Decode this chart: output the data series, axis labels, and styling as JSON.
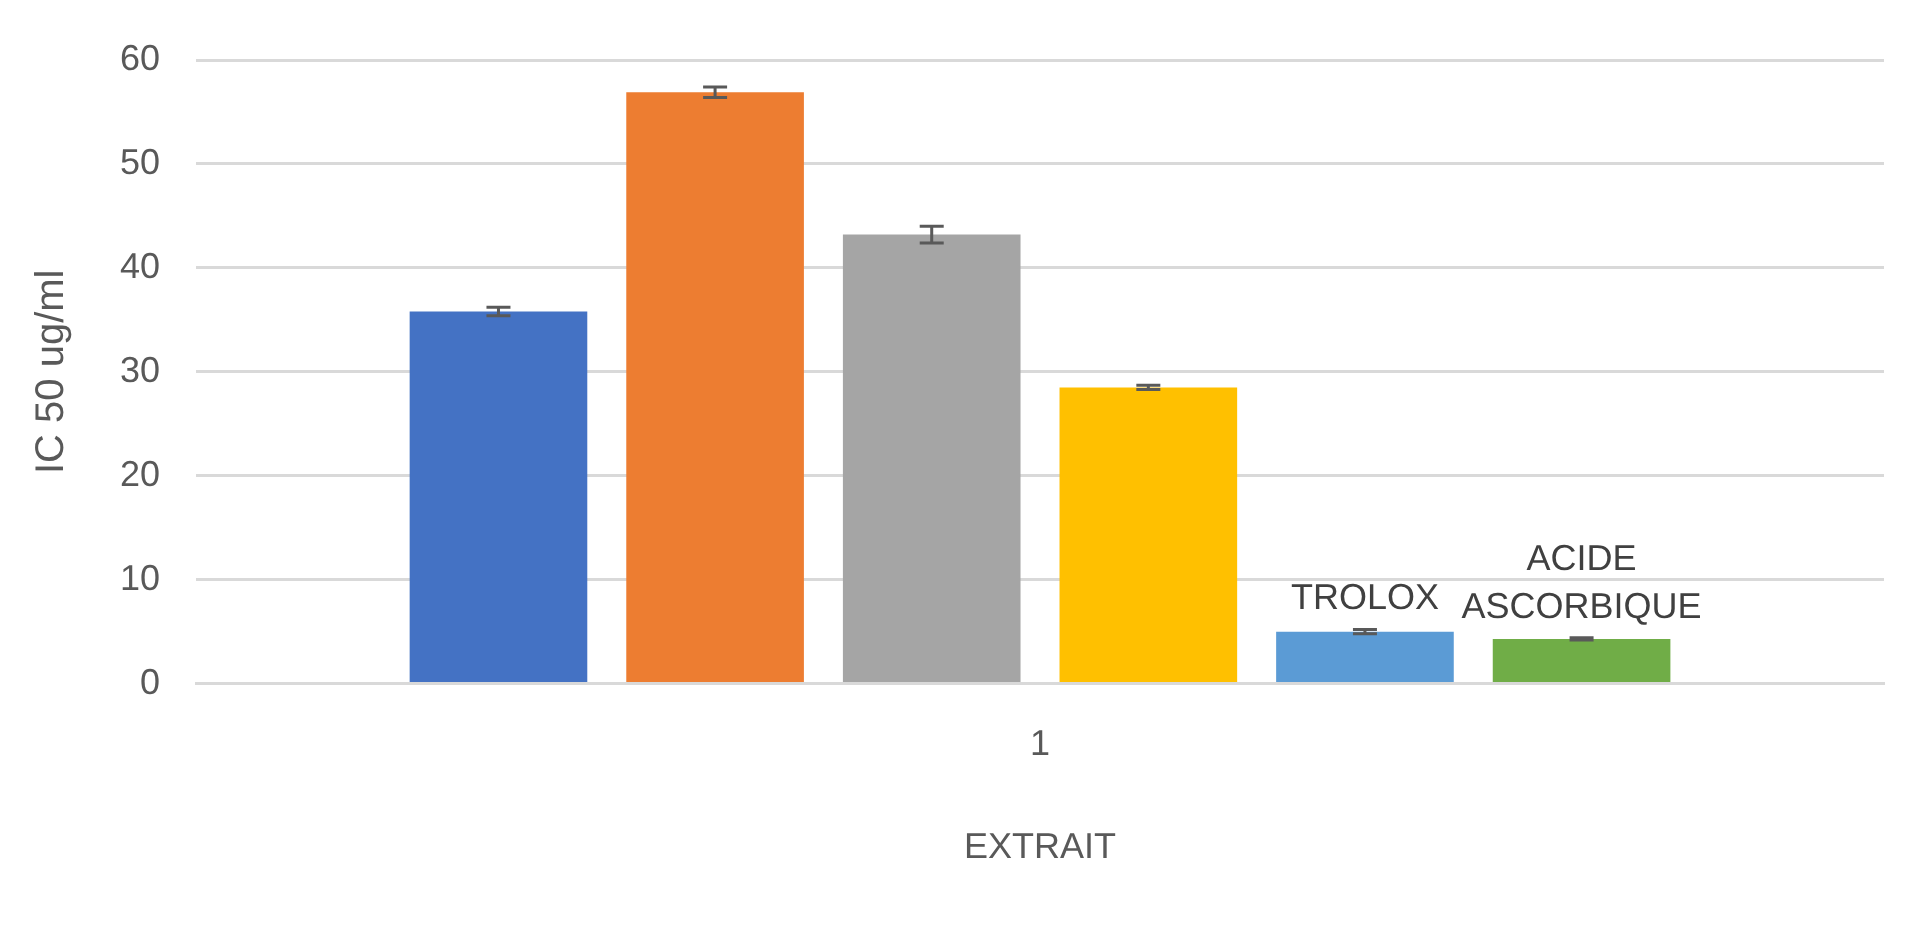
{
  "chart_data": {
    "type": "bar",
    "xlabel": "EXTRAIT",
    "ylabel": "IC 50 ug/ml",
    "categories": [
      "1"
    ],
    "series": [
      {
        "color": "#4472c4",
        "values": [
          35.8
        ],
        "errors": [
          0.4
        ]
      },
      {
        "color": "#ed7d31",
        "values": [
          56.9
        ],
        "errors": [
          0.5
        ]
      },
      {
        "color": "#a5a5a5",
        "values": [
          43.2
        ],
        "errors": [
          0.8
        ]
      },
      {
        "color": "#ffc000",
        "values": [
          28.5
        ],
        "errors": [
          0.2
        ]
      },
      {
        "name": "TROLOX",
        "color": "#5b9bd5",
        "values": [
          5.0
        ],
        "errors": [
          0.2
        ]
      },
      {
        "name": "ACIDE ASCORBIQUE",
        "color": "#70ad47",
        "values": [
          4.3
        ],
        "errors": [
          0.1
        ]
      }
    ],
    "ylim": [
      0,
      60
    ],
    "yticks": [
      0,
      10,
      20,
      30,
      40,
      50,
      60
    ],
    "grid": "y",
    "legend": false
  }
}
